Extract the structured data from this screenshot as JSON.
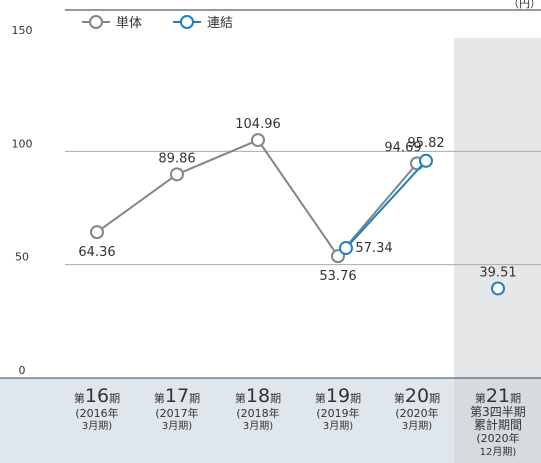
{
  "chart_data": {
    "type": "line",
    "unit_label": "（円）",
    "categories": [
      {
        "prefix": "第",
        "num": "16",
        "suffix": "期",
        "lines": [
          "(2016年",
          "3月期)"
        ]
      },
      {
        "prefix": "第",
        "num": "17",
        "suffix": "期",
        "lines": [
          "(2017年",
          "3月期)"
        ]
      },
      {
        "prefix": "第",
        "num": "18",
        "suffix": "期",
        "lines": [
          "(2018年",
          "3月期)"
        ]
      },
      {
        "prefix": "第",
        "num": "19",
        "suffix": "期",
        "lines": [
          "(2019年",
          "3月期)"
        ]
      },
      {
        "prefix": "第",
        "num": "20",
        "suffix": "期",
        "lines": [
          "(2020年",
          "3月期)"
        ]
      },
      {
        "prefix": "第",
        "num": "21",
        "suffix": "期",
        "lines": [
          "第3四半期",
          "累計期間",
          "(2020年",
          "12月期)"
        ]
      }
    ],
    "series": [
      {
        "name": "単体",
        "color": "#7f868b",
        "values": [
          64.36,
          89.86,
          104.96,
          53.76,
          94.69,
          null
        ],
        "labels": [
          "64.36",
          "89.86",
          "104.96",
          "53.76",
          "94.69",
          ""
        ]
      },
      {
        "name": "連結",
        "color": "#1f7fbf",
        "values": [
          null,
          null,
          null,
          57.34,
          95.82,
          39.51
        ],
        "labels": [
          "",
          "",
          "",
          "57.34",
          "95.82",
          "39.51"
        ]
      }
    ],
    "yticks": [
      "0",
      "50",
      "100",
      "150"
    ],
    "ylim": [
      0,
      150
    ],
    "grid": true,
    "legend_position": "top-left",
    "highlight_last_category": true
  }
}
